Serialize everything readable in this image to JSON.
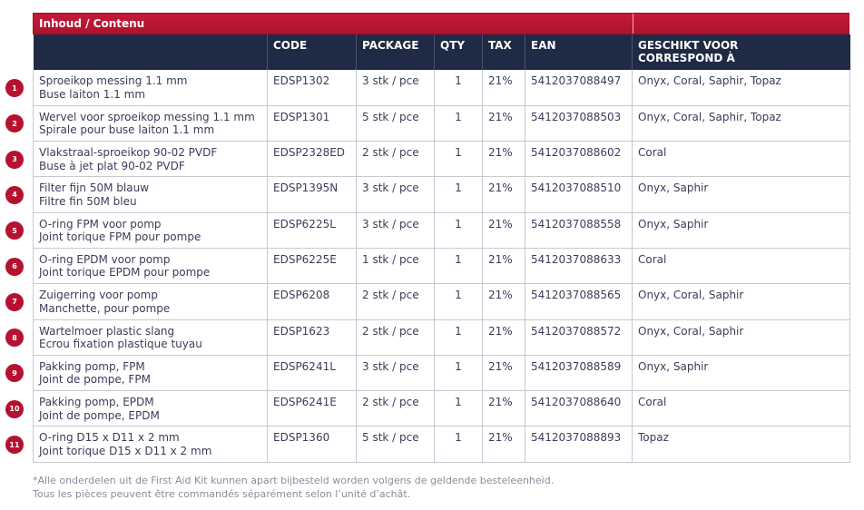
{
  "title": "Inhoud / Contenu",
  "headers": {
    "code": "CODE",
    "package": "PACKAGE",
    "qty": "QTY",
    "tax": "TAX",
    "ean": "EAN",
    "fit_line1": "GESCHIKT VOOR",
    "fit_line2": "CORRESPOND À"
  },
  "rows": [
    {
      "num": "1",
      "nl": "Sproeikop messing 1.1 mm",
      "fr": "Buse laiton 1.1 mm",
      "code": "EDSP1302",
      "package": "3 stk / pce",
      "qty": "1",
      "tax": "21%",
      "ean": "5412037088497",
      "fit": "Onyx, Coral, Saphir, Topaz"
    },
    {
      "num": "2",
      "nl": "Wervel voor sproeikop messing 1.1 mm",
      "fr": "Spirale pour buse laiton 1.1 mm",
      "code": "EDSP1301",
      "package": "5 stk / pce",
      "qty": "1",
      "tax": "21%",
      "ean": "5412037088503",
      "fit": "Onyx, Coral, Saphir, Topaz"
    },
    {
      "num": "3",
      "nl": "Vlakstraal-sproeikop 90-02 PVDF",
      "fr": "Buse à jet plat 90-02 PVDF",
      "code": "EDSP2328ED",
      "package": "2 stk / pce",
      "qty": "1",
      "tax": "21%",
      "ean": "5412037088602",
      "fit": "Coral"
    },
    {
      "num": "4",
      "nl": "Filter fijn 50M blauw",
      "fr": "Filtre fin 50M bleu",
      "code": "EDSP1395N",
      "package": "3 stk / pce",
      "qty": "1",
      "tax": "21%",
      "ean": "5412037088510",
      "fit": "Onyx, Saphir"
    },
    {
      "num": "5",
      "nl": "O-ring FPM voor pomp",
      "fr": "Joint torique FPM pour pompe",
      "code": "EDSP6225L",
      "package": "3 stk / pce",
      "qty": "1",
      "tax": "21%",
      "ean": "5412037088558",
      "fit": "Onyx, Saphir"
    },
    {
      "num": "6",
      "nl": "O-ring EPDM voor pomp",
      "fr": "Joint torique EPDM pour pompe",
      "code": "EDSP6225E",
      "package": "1 stk / pce",
      "qty": "1",
      "tax": "21%",
      "ean": "5412037088633",
      "fit": "Coral"
    },
    {
      "num": "7",
      "nl": "Zuigerring voor pomp",
      "fr": "Manchette, pour pompe",
      "code": "EDSP6208",
      "package": "2 stk / pce",
      "qty": "1",
      "tax": "21%",
      "ean": "5412037088565",
      "fit": "Onyx, Coral, Saphir"
    },
    {
      "num": "8",
      "nl": "Wartelmoer plastic slang",
      "fr": "Ecrou fixation plastique tuyau",
      "code": "EDSP1623",
      "package": "2 stk / pce",
      "qty": "1",
      "tax": "21%",
      "ean": "5412037088572",
      "fit": "Onyx, Coral, Saphir"
    },
    {
      "num": "9",
      "nl": "Pakking pomp, FPM",
      "fr": "Joint de pompe, FPM",
      "code": "EDSP6241L",
      "package": "3 stk / pce",
      "qty": "1",
      "tax": "21%",
      "ean": "5412037088589",
      "fit": "Onyx, Saphir"
    },
    {
      "num": "10",
      "nl": "Pakking pomp, EPDM",
      "fr": "Joint de pompe, EPDM",
      "code": "EDSP6241E",
      "package": "2 stk / pce",
      "qty": "1",
      "tax": "21%",
      "ean": "5412037088640",
      "fit": "Coral"
    },
    {
      "num": "11",
      "nl": "O-ring D15 x D11 x 2 mm",
      "fr": "Joint torique D15 x D11 x 2 mm",
      "code": "EDSP1360",
      "package": "5 stk / pce",
      "qty": "1",
      "tax": "21%",
      "ean": "5412037088893",
      "fit": "Topaz"
    }
  ],
  "footnote_nl": "*Alle onderdelen uit de First Aid Kit kunnen apart bijbesteld worden volgens de geldende besteleenheid.",
  "footnote_fr": "Tous les pièces peuvent être commandés séparément selon l’unité d’achât.",
  "colors": {
    "accent": "#b5122f",
    "header_bg": "#1f2a44"
  }
}
